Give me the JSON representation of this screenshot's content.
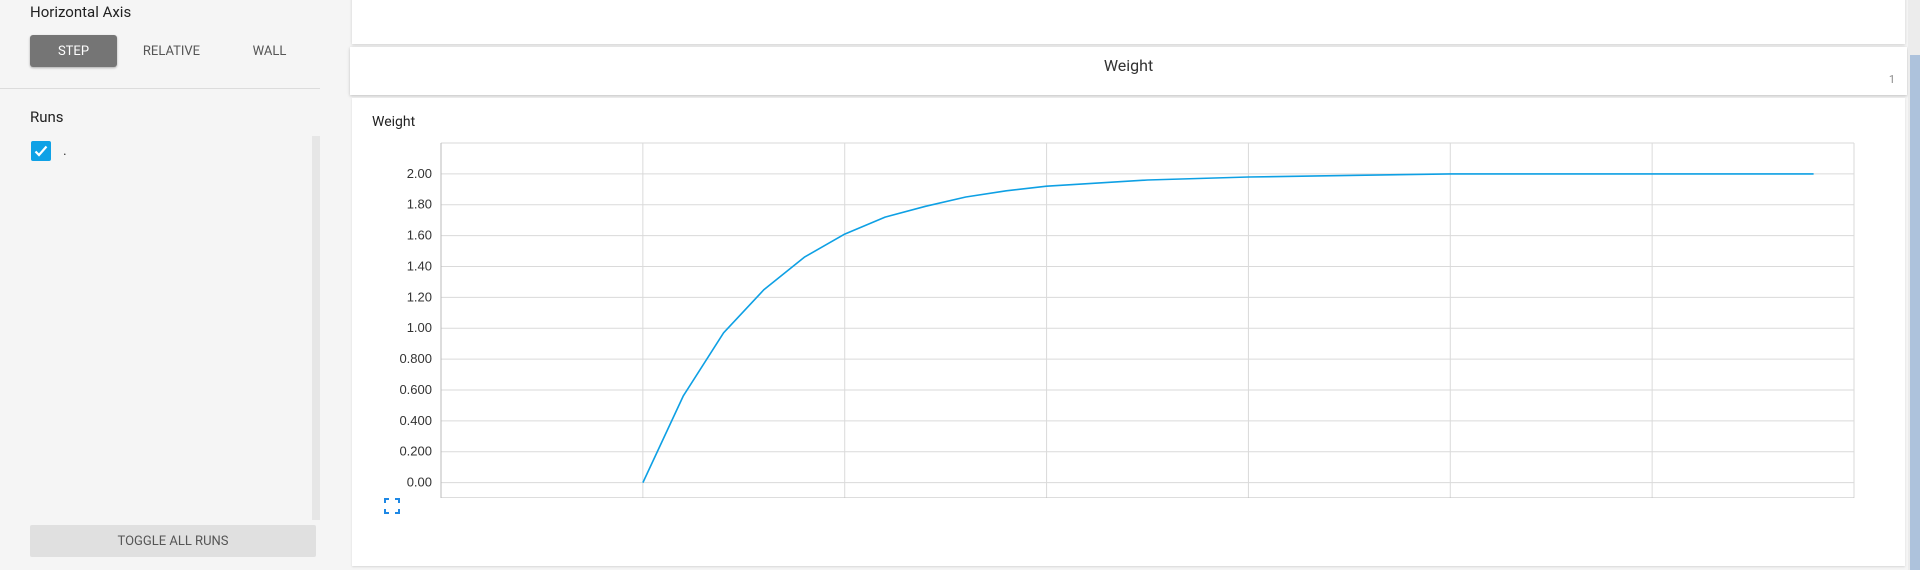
{
  "sidebar": {
    "horizontal_axis_title": "Horizontal Axis",
    "axis_buttons": [
      {
        "label": "STEP",
        "active": true
      },
      {
        "label": "RELATIVE",
        "active": false
      },
      {
        "label": "WALL",
        "active": false
      }
    ],
    "runs_title": "Runs",
    "runs": [
      {
        "label": ".",
        "checked": true,
        "color": "#0fa1e6"
      }
    ],
    "toggle_all_label": "TOGGLE ALL RUNS"
  },
  "category": {
    "title": "Weight",
    "count": "1"
  },
  "chart": {
    "title": "Weight",
    "expand_icon": "fit-to-screen-icon"
  },
  "colors": {
    "series": "#0ea0e4",
    "active_button": "#757575",
    "checkbox": "#0fa1e6"
  },
  "chart_data": {
    "type": "line",
    "title": "Weight",
    "xlabel": "",
    "ylabel": "",
    "ylim": [
      -0.1,
      2.2
    ],
    "xlim": [
      -1,
      6
    ],
    "y_ticks": [
      "0.00",
      "0.200",
      "0.400",
      "0.600",
      "0.800",
      "1.00",
      "1.20",
      "1.40",
      "1.60",
      "1.80",
      "2.00"
    ],
    "grid": true,
    "series": [
      {
        "x": [
          0,
          0.2,
          0.4,
          0.6,
          0.8,
          1.0,
          1.2,
          1.4,
          1.6,
          1.8,
          2.0,
          2.5,
          3.0,
          3.5,
          4.0,
          4.5,
          5.0,
          5.8
        ],
        "y": [
          0.0,
          0.56,
          0.97,
          1.25,
          1.46,
          1.61,
          1.72,
          1.79,
          1.85,
          1.89,
          1.92,
          1.96,
          1.98,
          1.99,
          2.0,
          2.0,
          2.0,
          2.0
        ]
      }
    ]
  }
}
